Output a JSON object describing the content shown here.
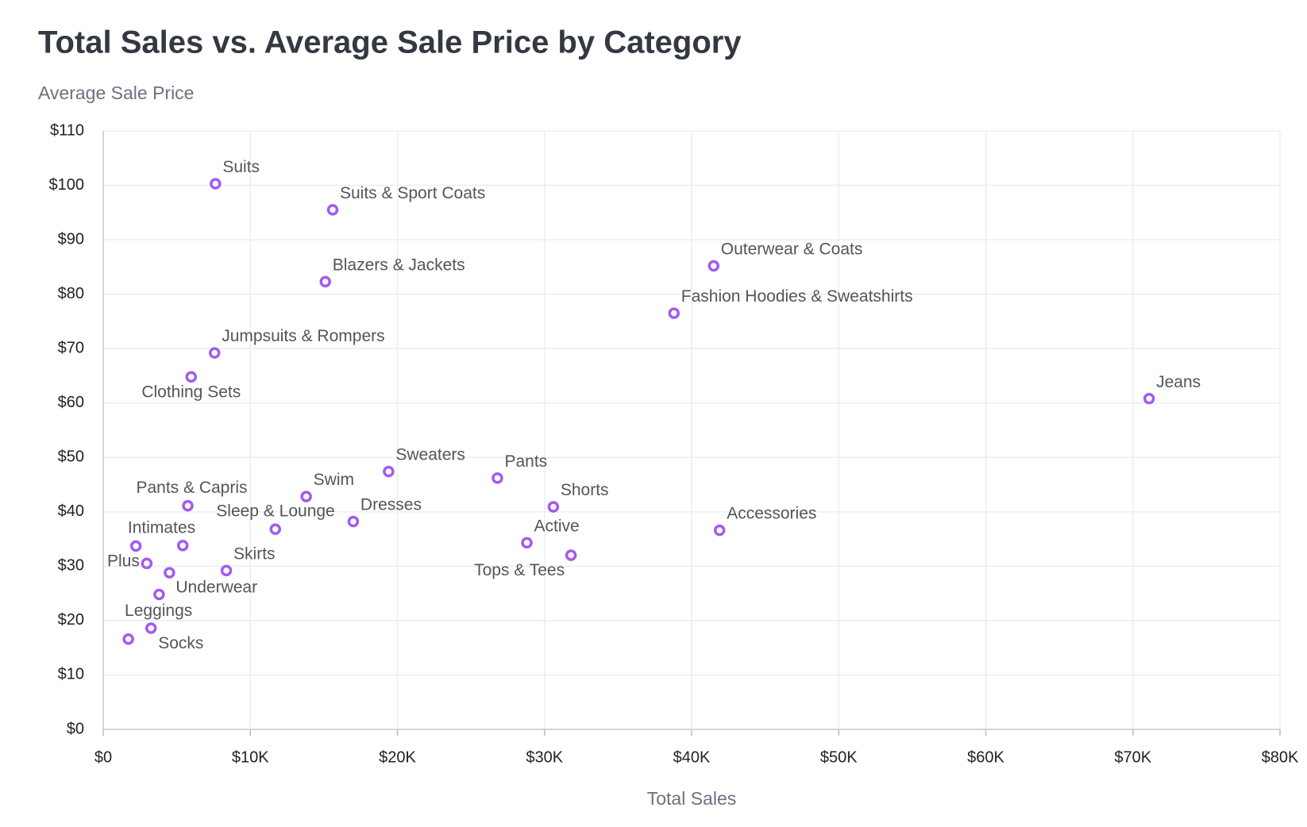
{
  "chart_data": {
    "type": "scatter",
    "title": "Total Sales vs. Average Sale Price by Category",
    "y_label": "Average Sale Price",
    "x_label": "Total Sales",
    "color": "#a05cf0",
    "grid": true,
    "xlim": [
      0,
      80000
    ],
    "ylim": [
      0,
      110
    ],
    "xticks": [
      {
        "value": 0,
        "label": "$0"
      },
      {
        "value": 10000,
        "label": "$10K"
      },
      {
        "value": 20000,
        "label": "$20K"
      },
      {
        "value": 30000,
        "label": "$30K"
      },
      {
        "value": 40000,
        "label": "$40K"
      },
      {
        "value": 50000,
        "label": "$50K"
      },
      {
        "value": 60000,
        "label": "$60K"
      },
      {
        "value": 70000,
        "label": "$70K"
      },
      {
        "value": 80000,
        "label": "$80K"
      }
    ],
    "yticks": [
      {
        "value": 0,
        "label": "$0"
      },
      {
        "value": 10,
        "label": "$10"
      },
      {
        "value": 20,
        "label": "$20"
      },
      {
        "value": 30,
        "label": "$30"
      },
      {
        "value": 40,
        "label": "$40"
      },
      {
        "value": 50,
        "label": "$50"
      },
      {
        "value": 60,
        "label": "$60"
      },
      {
        "value": 70,
        "label": "$70"
      },
      {
        "value": 80,
        "label": "$80"
      },
      {
        "value": 90,
        "label": "$90"
      },
      {
        "value": 100,
        "label": "$100"
      },
      {
        "value": 110,
        "label": "$110"
      }
    ],
    "labels": [
      "Suits",
      "Suits & Sport Coats",
      "Blazers & Jackets",
      "Outerwear & Coats",
      "Fashion Hoodies & Sweatshirts",
      "Jumpsuits & Rompers",
      "Clothing Sets",
      "Jeans",
      "Sweaters",
      "Pants",
      "Swim",
      "Pants & Capris",
      "Shorts",
      "Dresses",
      "Sleep & Lounge",
      "Accessories",
      "Active",
      null,
      "Intimates",
      "Tops & Tees",
      "Plus",
      null,
      "Skirts",
      "Underwear",
      "Socks",
      "Leggings"
    ],
    "x": [
      7630,
      15600,
      15100,
      41500,
      38800,
      7570,
      5980,
      71100,
      19400,
      26800,
      13800,
      5750,
      30600,
      17000,
      11700,
      41900,
      28800,
      5410,
      2220,
      31800,
      2960,
      4500,
      8370,
      3800,
      3250,
      1710
    ],
    "values": [
      100.3,
      95.5,
      82.3,
      85.2,
      76.5,
      69.2,
      64.8,
      60.8,
      47.4,
      46.2,
      42.8,
      41.1,
      40.9,
      38.2,
      36.8,
      36.6,
      34.3,
      33.8,
      33.7,
      32.0,
      30.5,
      28.8,
      29.2,
      24.8,
      18.6,
      16.6
    ]
  }
}
